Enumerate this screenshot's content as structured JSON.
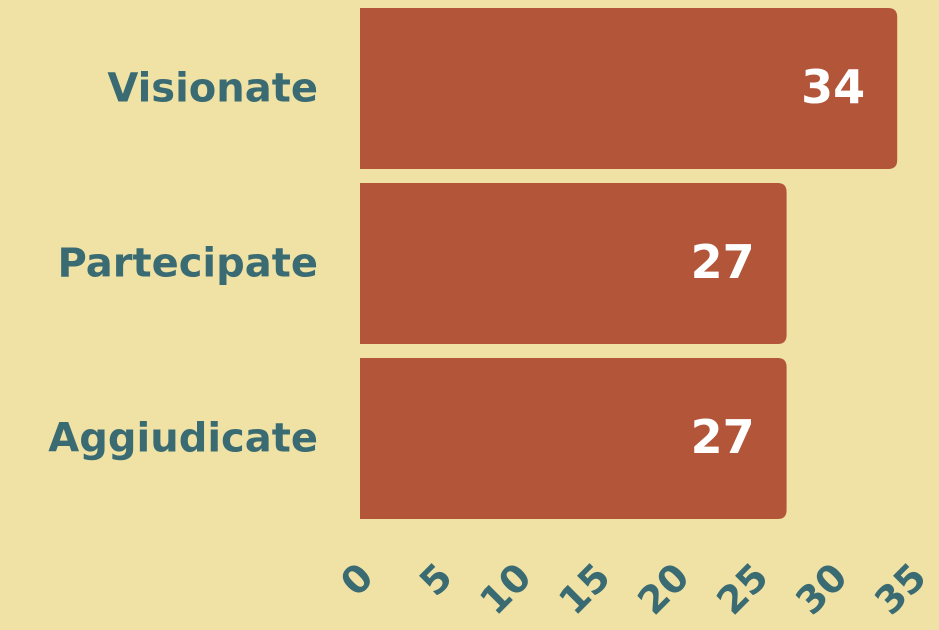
{
  "chart_data": {
    "type": "bar",
    "orientation": "horizontal",
    "categories": [
      "Visionate",
      "Partecipate",
      "Aggiudicate"
    ],
    "values": [
      34,
      27,
      27
    ],
    "color": "#b35538",
    "xlim": [
      0,
      35
    ],
    "xticks": [
      0,
      5,
      10,
      15,
      20,
      25,
      30,
      35
    ],
    "grid": false
  }
}
